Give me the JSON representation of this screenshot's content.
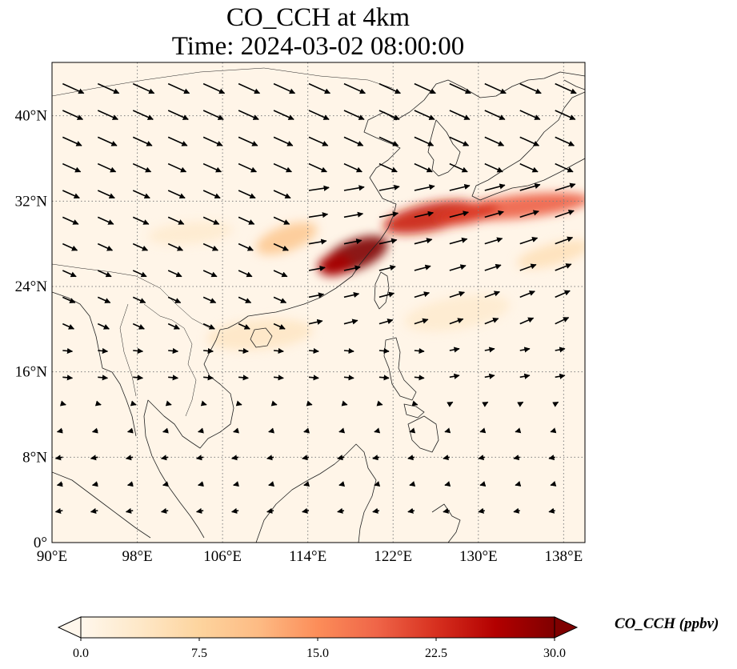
{
  "title": {
    "line1": "CO_CCH at 4km",
    "line2": "Time: 2024-03-02 08:00:00"
  },
  "map": {
    "projection": "PlateCarree",
    "lon_range": [
      90,
      140
    ],
    "lat_range": [
      0,
      45
    ],
    "lon_ticks": [
      {
        "value": 90,
        "label": "90°E"
      },
      {
        "value": 98,
        "label": "98°E"
      },
      {
        "value": 106,
        "label": "106°E"
      },
      {
        "value": 114,
        "label": "114°E"
      },
      {
        "value": 122,
        "label": "122°E"
      },
      {
        "value": 130,
        "label": "130°E"
      },
      {
        "value": 138,
        "label": "138°E"
      }
    ],
    "lat_ticks": [
      {
        "value": 0,
        "label": "0°"
      },
      {
        "value": 8,
        "label": "8°N"
      },
      {
        "value": 16,
        "label": "16°N"
      },
      {
        "value": 24,
        "label": "24°N"
      },
      {
        "value": 32,
        "label": "32°N"
      },
      {
        "value": 40,
        "label": "40°N"
      }
    ],
    "gridlines": "dotted",
    "field": {
      "variable": "CO_CCH",
      "background_color": "#fff5e8",
      "plumes": [
        {
          "lon": 118.5,
          "lat": 27.0,
          "sx": 3.2,
          "sy": 1.4,
          "rot": -22,
          "value": 30
        },
        {
          "lon": 116.5,
          "lat": 26.0,
          "sx": 1.6,
          "sy": 1.0,
          "rot": -10,
          "value": 27
        },
        {
          "lon": 125.5,
          "lat": 30.5,
          "sx": 4.5,
          "sy": 1.3,
          "rot": -12,
          "value": 24
        },
        {
          "lon": 134.0,
          "lat": 31.5,
          "sx": 6.5,
          "sy": 1.1,
          "rot": -6,
          "value": 19
        },
        {
          "lon": 129.0,
          "lat": 30.8,
          "sx": 3.0,
          "sy": 0.9,
          "rot": -12,
          "value": 22
        },
        {
          "lon": 112.0,
          "lat": 28.5,
          "sx": 3.0,
          "sy": 1.2,
          "rot": -20,
          "value": 9
        },
        {
          "lon": 109.5,
          "lat": 19.5,
          "sx": 5.0,
          "sy": 1.4,
          "rot": -5,
          "value": 4
        },
        {
          "lon": 103.0,
          "lat": 29.0,
          "sx": 4.0,
          "sy": 1.0,
          "rot": -5,
          "value": 3
        },
        {
          "lon": 128.0,
          "lat": 21.5,
          "sx": 5.0,
          "sy": 1.5,
          "rot": -10,
          "value": 3
        },
        {
          "lon": 137.0,
          "lat": 27.0,
          "sx": 3.5,
          "sy": 1.0,
          "rot": -15,
          "value": 5
        }
      ]
    }
  },
  "colorbar": {
    "min": 0.0,
    "max": 30.0,
    "extend": "both",
    "colormap": "OrRd",
    "stops": [
      "#fff7ec",
      "#fee8c8",
      "#fdd49e",
      "#fdbb84",
      "#fc8d59",
      "#ef6548",
      "#d7301f",
      "#b30000",
      "#7f0000"
    ],
    "ticks": [
      "0.0",
      "7.5",
      "15.0",
      "22.5",
      "30.0"
    ],
    "label": "CO_CCH (ppbv)"
  }
}
